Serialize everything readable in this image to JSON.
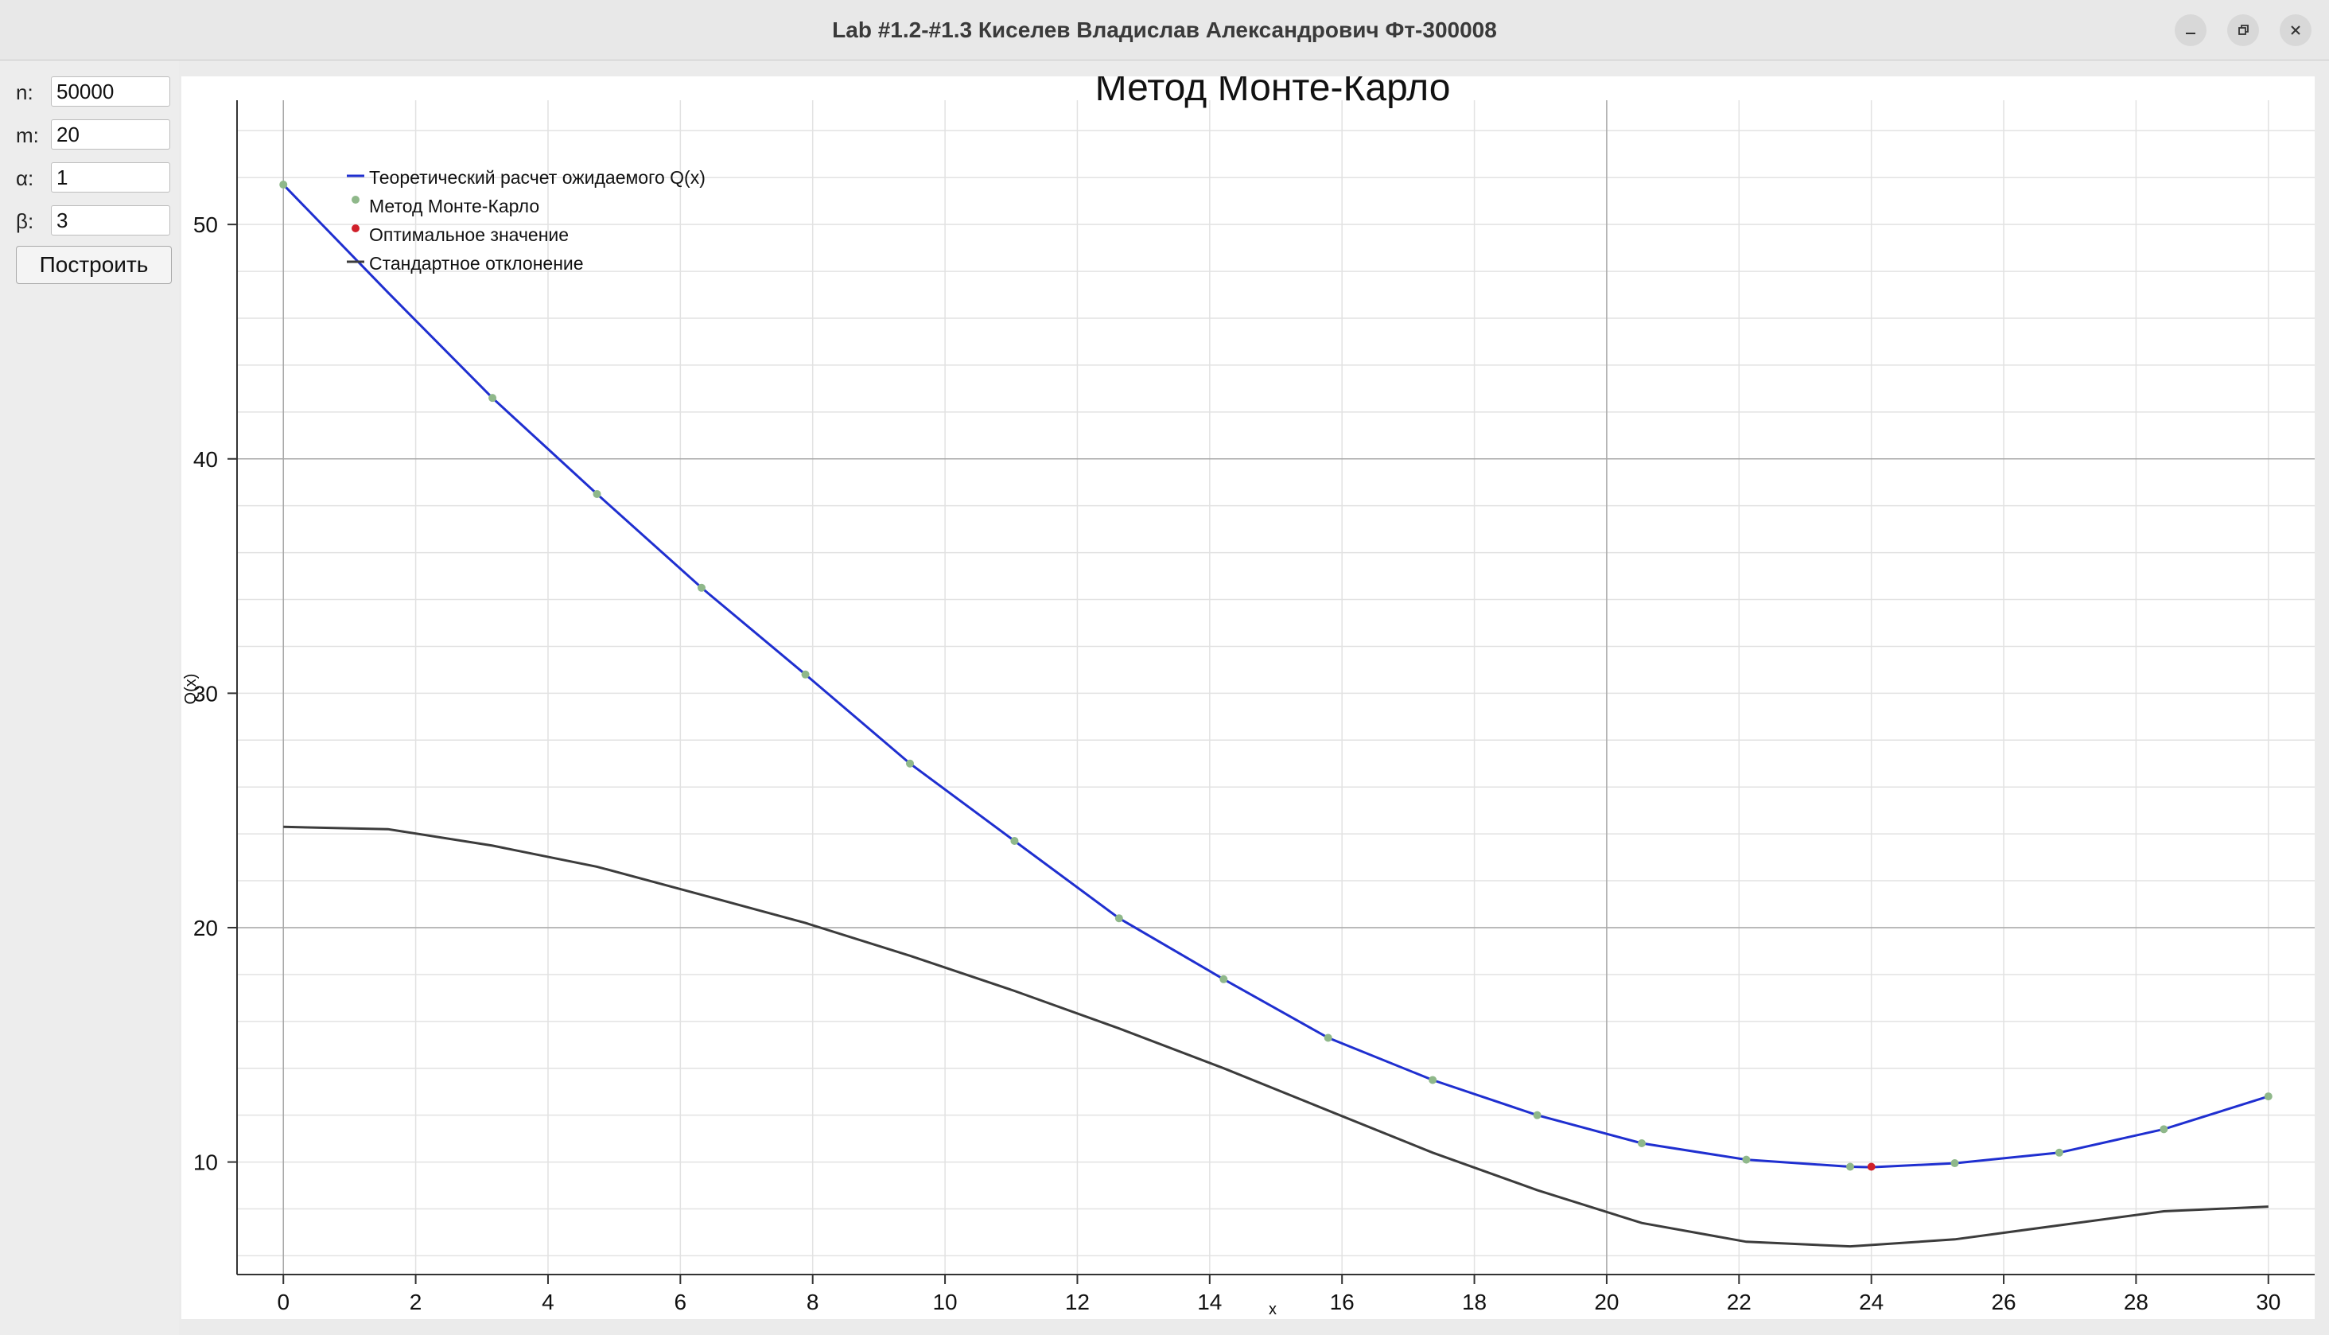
{
  "window": {
    "title": "Lab #1.2-#1.3 Киселев Владислав Александрович Фт-300008",
    "minimize_icon": "minimize-icon",
    "restore_icon": "restore-icon",
    "close_icon": "close-icon"
  },
  "form": {
    "n_label": "n:",
    "n_value": "50000",
    "m_label": "m:",
    "m_value": "20",
    "alpha_label": "α:",
    "alpha_value": "1",
    "beta_label": "β:",
    "beta_value": "3",
    "build_label": "Построить"
  },
  "chart_data": {
    "type": "line",
    "title": "Метод Монте-Карло",
    "xlabel": "x",
    "ylabel": "Q(x)",
    "xlim": [
      -0.7,
      30.7
    ],
    "ylim": [
      5.2,
      55.3
    ],
    "x_ticks": [
      0,
      2,
      4,
      6,
      8,
      10,
      12,
      14,
      16,
      18,
      20,
      22,
      24,
      26,
      28,
      30
    ],
    "y_ticks": [
      10,
      20,
      30,
      40,
      50
    ],
    "grid": true,
    "legend_position": "top-left",
    "series": [
      {
        "name": "Теоретический расчет ожидаемого Q(x)",
        "style": "line",
        "color": "#1f2fd0",
        "x": [
          0,
          1.58,
          3.16,
          4.74,
          6.32,
          7.89,
          9.47,
          11.05,
          12.63,
          14.21,
          15.79,
          17.37,
          18.95,
          20.53,
          22.11,
          23.68,
          24,
          25.26,
          26.84,
          28.42,
          30
        ],
        "y": [
          51.7,
          47.1,
          42.6,
          38.5,
          34.5,
          30.8,
          27.0,
          23.7,
          20.4,
          17.8,
          15.3,
          13.5,
          12.0,
          10.8,
          10.1,
          9.8,
          9.78,
          9.95,
          10.4,
          11.4,
          12.8
        ]
      },
      {
        "name": "Метод Монте-Карло",
        "style": "markers",
        "color": "#8fb88a",
        "x": [
          0,
          3.16,
          4.74,
          6.32,
          7.89,
          9.47,
          11.05,
          12.63,
          14.21,
          15.79,
          17.37,
          18.95,
          20.53,
          22.11,
          23.68,
          25.26,
          26.84,
          28.42,
          30
        ],
        "y": [
          51.7,
          42.6,
          38.5,
          34.5,
          30.8,
          27.0,
          23.7,
          20.4,
          17.8,
          15.3,
          13.5,
          12.0,
          10.8,
          10.1,
          9.8,
          9.95,
          10.4,
          11.4,
          12.8
        ]
      },
      {
        "name": "Оптимальное значение",
        "style": "markers",
        "color": "#d0202a",
        "x": [
          24
        ],
        "y": [
          9.8
        ]
      },
      {
        "name": "Стандартное отклонение",
        "style": "line",
        "color": "#3c3c3c",
        "x": [
          0,
          1.58,
          3.16,
          4.74,
          6.32,
          7.89,
          9.47,
          11.05,
          12.63,
          14.21,
          15.79,
          17.37,
          18.95,
          20.53,
          22.11,
          23.68,
          25.26,
          26.84,
          28.42,
          30
        ],
        "y": [
          24.3,
          24.2,
          23.5,
          22.6,
          21.4,
          20.2,
          18.8,
          17.3,
          15.7,
          14.0,
          12.2,
          10.4,
          8.8,
          7.4,
          6.6,
          6.4,
          6.7,
          7.3,
          7.9,
          8.1
        ]
      }
    ]
  }
}
